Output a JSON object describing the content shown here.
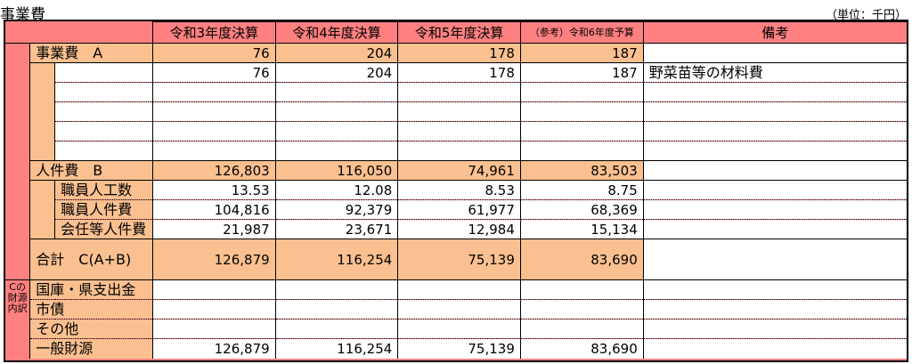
{
  "title": "事業費",
  "unit": "（単位：千円）",
  "headers": [
    "令和3年度決算",
    "令和4年度決算",
    "令和5年度決算",
    "（参考）令和6年度予算",
    "備考"
  ],
  "jigyouhi": {
    "label": "事業費　A",
    "totals": [
      "76",
      "204",
      "178",
      "187"
    ],
    "row1": [
      "76",
      "204",
      "178",
      "187"
    ],
    "row1_note": "野菜苗等の材料費"
  },
  "jinkenhi": {
    "label": "人件費　B",
    "totals": [
      "126,803",
      "116,050",
      "74,961",
      "83,503"
    ],
    "rows": [
      {
        "label": "職員人工数",
        "values": [
          "13.53",
          "12.08",
          "8.53",
          "8.75"
        ]
      },
      {
        "label": "職員人件費",
        "values": [
          "104,816",
          "92,379",
          "61,977",
          "68,369"
        ]
      },
      {
        "label": "会任等人件費",
        "values": [
          "21,987",
          "23,671",
          "12,984",
          "15,134"
        ]
      }
    ]
  },
  "goukei": {
    "label": "合計　C(A+B)",
    "values": [
      "126,879",
      "116,254",
      "75,139",
      "83,690"
    ]
  },
  "zaigen": {
    "side_label": "Cの財源内訳",
    "rows": [
      {
        "label": "国庫・県支出金",
        "values": [
          "",
          "",
          "",
          ""
        ]
      },
      {
        "label": "市債",
        "values": [
          "",
          "",
          "",
          ""
        ]
      },
      {
        "label": "その他",
        "values": [
          "",
          "",
          "",
          ""
        ]
      },
      {
        "label": "一般財源",
        "values": [
          "126,879",
          "116,254",
          "75,139",
          "83,690"
        ]
      }
    ]
  }
}
